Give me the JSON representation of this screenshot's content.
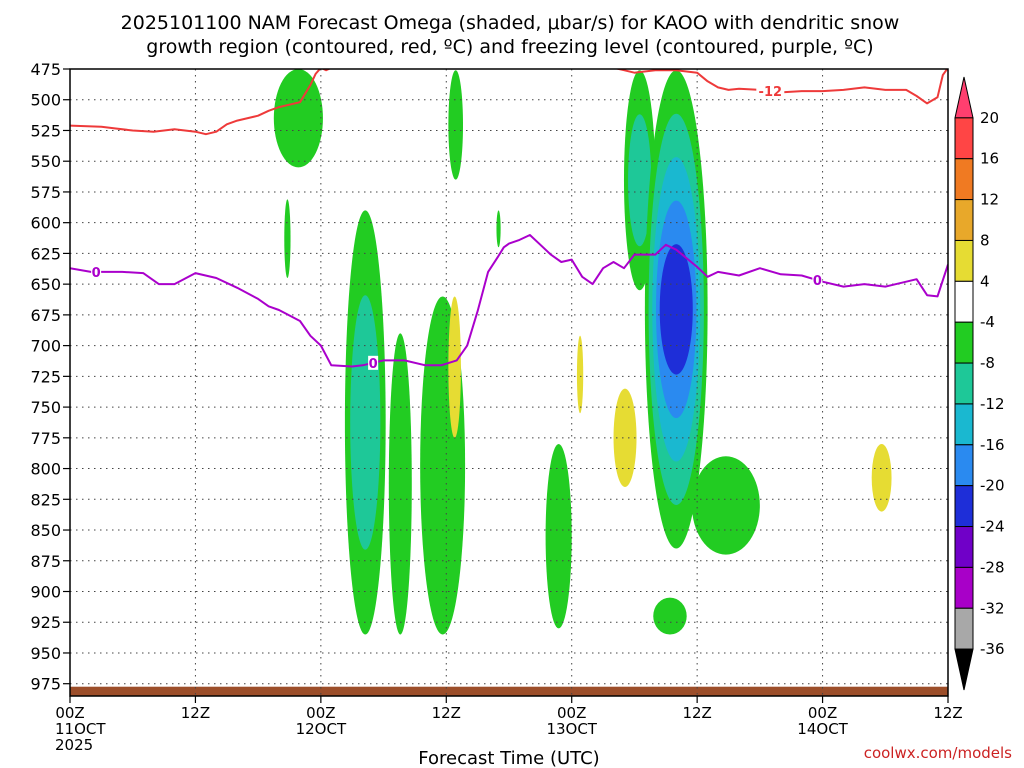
{
  "chart_data": {
    "type": "heatmap",
    "title_line1": "2025101100 NAM Forecast Omega (shaded, μbar/s) for KAOO with dendritic snow",
    "title_line2": "growth region (contoured, red, ºC) and freezing level (contoured, purple, ºC)",
    "xlabel": "Forecast Time (UTC)",
    "credit": "coolwx.com/models",
    "xlim": [
      0,
      84
    ],
    "ylim": [
      475,
      985
    ],
    "x_ticks": [
      {
        "x": 0,
        "line1": "00Z",
        "line2": "11OCT",
        "line3": "2025"
      },
      {
        "x": 12,
        "line1": "12Z",
        "line2": "",
        "line3": ""
      },
      {
        "x": 24,
        "line1": "00Z",
        "line2": "12OCT",
        "line3": ""
      },
      {
        "x": 36,
        "line1": "12Z",
        "line2": "",
        "line3": ""
      },
      {
        "x": 48,
        "line1": "00Z",
        "line2": "13OCT",
        "line3": ""
      },
      {
        "x": 60,
        "line1": "12Z",
        "line2": "",
        "line3": ""
      },
      {
        "x": 72,
        "line1": "00Z",
        "line2": "14OCT",
        "line3": ""
      },
      {
        "x": 84,
        "line1": "12Z",
        "line2": "",
        "line3": ""
      }
    ],
    "y_ticks": [
      "475",
      "500",
      "525",
      "550",
      "575",
      "600",
      "625",
      "650",
      "675",
      "700",
      "725",
      "750",
      "775",
      "800",
      "825",
      "850",
      "875",
      "900",
      "925",
      "950",
      "975"
    ],
    "colorbar": {
      "levels": [
        "20",
        "16",
        "12",
        "8",
        "4",
        "-4",
        "-8",
        "-12",
        "-16",
        "-20",
        "-24",
        "-28",
        "-32",
        "-36"
      ],
      "colors": [
        "#ff3f6f",
        "#ff4545",
        "#f07a22",
        "#e8a82a",
        "#e6dc33",
        "#ffffff",
        "#22cc22",
        "#1ec898",
        "#1ab8d0",
        "#2a8af0",
        "#1e2ed8",
        "#7000c8",
        "#a800c8",
        "#a8a8a8",
        "#000000"
      ]
    },
    "contours": [
      {
        "name": "dgz -12C",
        "label": "-12",
        "color": "#ee3a3a",
        "x": [
          0,
          3,
          6,
          8,
          10,
          12,
          13,
          14,
          15,
          16,
          18,
          19,
          20,
          22,
          23,
          23.5,
          24,
          24.5,
          25,
          28,
          30,
          33,
          35,
          37,
          40,
          43,
          45,
          48,
          50,
          52,
          53,
          54,
          56,
          58,
          60,
          61,
          62,
          63,
          64,
          66,
          68,
          70,
          72,
          74,
          76,
          78,
          79,
          80,
          81,
          82,
          83,
          83.5,
          84
        ],
        "y": [
          521,
          522,
          525,
          526,
          524,
          526,
          528,
          526,
          520,
          517,
          513,
          509,
          506,
          502,
          488,
          479,
          474,
          476,
          474,
          474,
          474,
          474,
          474,
          474,
          474,
          474,
          474,
          474,
          474,
          474,
          476,
          478,
          476,
          476,
          478,
          485,
          490,
          492,
          491,
          492,
          494,
          493,
          493,
          492,
          490,
          492,
          492,
          492,
          497,
          503,
          498,
          480,
          474
        ]
      },
      {
        "name": "freezing level 0C",
        "label": "0",
        "color": "#aa00cc",
        "x": [
          0,
          2,
          5,
          7,
          8.5,
          10,
          12,
          14,
          16,
          18,
          19,
          20,
          22,
          23,
          24,
          25,
          27,
          28,
          30,
          32,
          34,
          35.5,
          37,
          38,
          39,
          40,
          41,
          41.5,
          42,
          43,
          44,
          45,
          46,
          47,
          48,
          49,
          50,
          51,
          52,
          53,
          54,
          56,
          57,
          58,
          60,
          61,
          62,
          64,
          66,
          68,
          70,
          72,
          74,
          76,
          78,
          80,
          81,
          82,
          83,
          84
        ],
        "y": [
          637,
          640,
          640,
          641,
          650,
          650,
          641,
          645,
          653,
          662,
          668,
          671,
          680,
          692,
          700,
          716,
          717,
          716,
          712,
          712,
          716,
          716,
          712,
          700,
          672,
          640,
          627,
          620,
          617,
          614,
          610,
          618,
          626,
          632,
          630,
          644,
          650,
          637,
          632,
          637,
          626,
          626,
          618,
          622,
          636,
          644,
          640,
          643,
          637,
          642,
          643,
          648,
          652,
          650,
          652,
          648,
          646,
          659,
          660,
          634
        ]
      }
    ],
    "shaded_regions": [
      {
        "omega": -6,
        "x0": 19.5,
        "x1": 24.2,
        "p0": 475,
        "p1": 555,
        "peak": -8
      },
      {
        "omega": -6,
        "x0": 20.5,
        "x1": 21.1,
        "p0": 581,
        "p1": 645,
        "peak": -4
      },
      {
        "omega": -6,
        "x0": 36.2,
        "x1": 37.6,
        "p0": 476,
        "p1": 565,
        "peak": -4
      },
      {
        "omega": -6,
        "x0": 40.8,
        "x1": 41.2,
        "p0": 590,
        "p1": 620,
        "peak": -4
      },
      {
        "omega": -6,
        "x0": 26.3,
        "x1": 30.2,
        "p0": 590,
        "p1": 935,
        "peak": -12
      },
      {
        "omega": -6,
        "x0": 30.5,
        "x1": 32.7,
        "p0": 690,
        "p1": 935,
        "peak": -8
      },
      {
        "omega": -6,
        "x0": 33.5,
        "x1": 37.8,
        "p0": 660,
        "p1": 935,
        "peak": -4
      },
      {
        "omega": -6,
        "x0": 45.5,
        "x1": 48.0,
        "p0": 780,
        "p1": 930,
        "peak": -8
      },
      {
        "omega": -6,
        "x0": 53.0,
        "x1": 56.0,
        "p0": 476,
        "p1": 655,
        "peak": -12
      },
      {
        "omega": -6,
        "x0": 55.0,
        "x1": 61.0,
        "p0": 476,
        "p1": 865,
        "peak": -24
      },
      {
        "omega": -6,
        "x0": 59.5,
        "x1": 66.0,
        "p0": 790,
        "p1": 870,
        "peak": -8
      },
      {
        "omega": -6,
        "x0": 55.8,
        "x1": 59.0,
        "p0": 905,
        "p1": 935,
        "peak": -4
      },
      {
        "omega": 5,
        "x0": 36.2,
        "x1": 37.4,
        "p0": 660,
        "p1": 775,
        "peak": 4
      },
      {
        "omega": 5,
        "x0": 48.5,
        "x1": 49.1,
        "p0": 692,
        "p1": 755,
        "peak": 4
      },
      {
        "omega": 5,
        "x0": 52.0,
        "x1": 54.2,
        "p0": 735,
        "p1": 815,
        "peak": 4
      },
      {
        "omega": 5,
        "x0": 76.7,
        "x1": 78.6,
        "p0": 780,
        "p1": 835,
        "peak": 4
      }
    ],
    "terrain": {
      "color": "#9c4e2a",
      "p_top": 975
    }
  }
}
